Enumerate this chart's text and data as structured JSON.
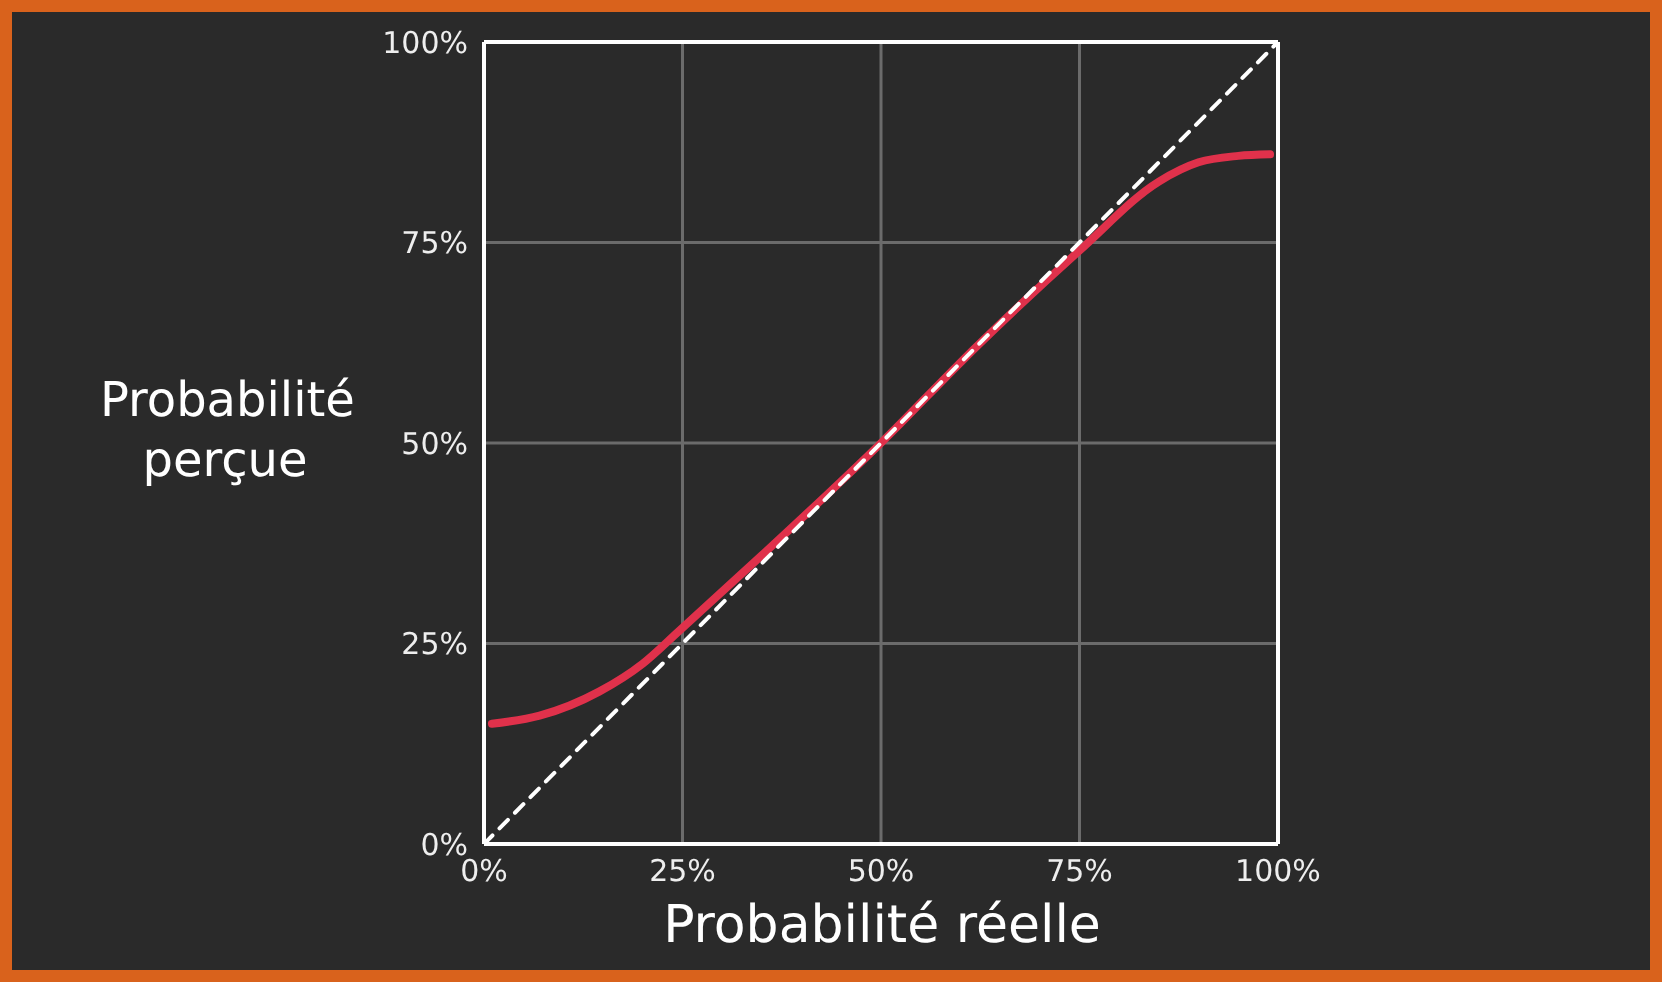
{
  "chart_data": {
    "type": "line",
    "xlabel": "Probabilité réelle",
    "ylabel": "Probabilité perçue",
    "xlim": [
      0,
      100
    ],
    "ylim": [
      0,
      100
    ],
    "xticks": [
      {
        "value": 0,
        "label": "0%"
      },
      {
        "value": 25,
        "label": "25%"
      },
      {
        "value": 50,
        "label": "50%"
      },
      {
        "value": 75,
        "label": "75%"
      },
      {
        "value": 100,
        "label": "100%"
      }
    ],
    "yticks": [
      {
        "value": 0,
        "label": "0%"
      },
      {
        "value": 25,
        "label": "25%"
      },
      {
        "value": 50,
        "label": "50%"
      },
      {
        "value": 75,
        "label": "75%"
      },
      {
        "value": 100,
        "label": "100%"
      }
    ],
    "grid": true,
    "marker": "none",
    "series": [
      {
        "color": "#e0314b",
        "line_style": "solid",
        "x": [
          1,
          7,
          14.5,
          20,
          24.6,
          35,
          50,
          62,
          75,
          85,
          90,
          95,
          99
        ],
        "values": [
          15,
          16,
          19,
          22.5,
          26.6,
          36,
          50,
          62,
          74,
          82.6,
          85,
          85.8,
          86
        ]
      },
      {
        "color": "#ffffff",
        "line_style": "dashed",
        "x": [
          0,
          100
        ],
        "values": [
          0,
          100
        ]
      }
    ]
  }
}
